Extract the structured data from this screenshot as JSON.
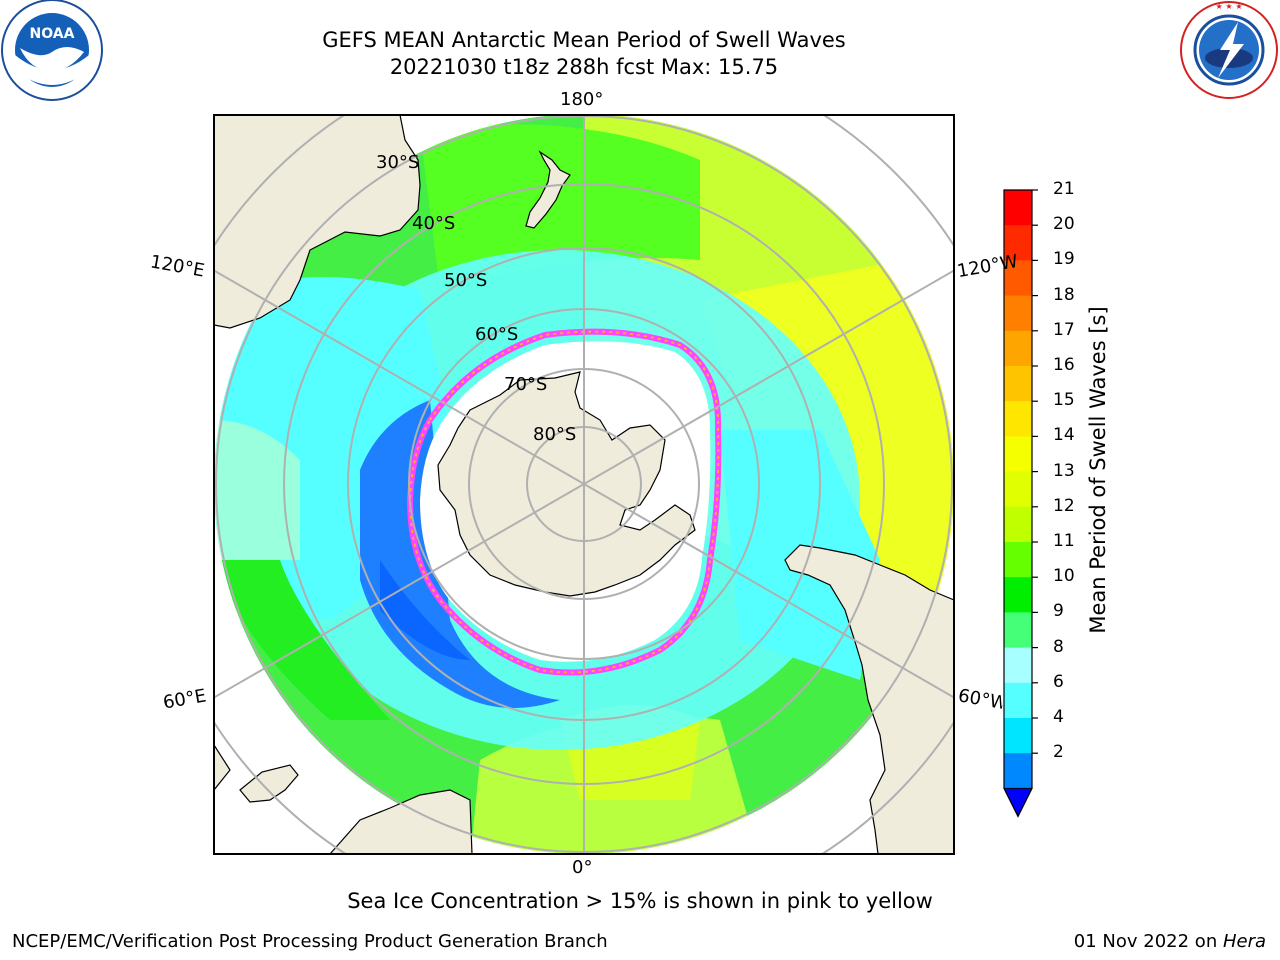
{
  "header": {
    "title_line1": "GEFS MEAN Antarctic Mean Period of Swell Waves",
    "title_line2": "20221030 t18z 288h fcst   Max: 15.75"
  },
  "logos": {
    "left": {
      "text": "NOAA",
      "ring_text": "NATIONAL OCEANIC AND ATMOSPHERIC ADMINISTRATION · U.S. DEPARTMENT OF COMMERCE"
    },
    "right": {
      "ring_text": "NATIONAL WEATHER SERVICE"
    }
  },
  "map": {
    "longitude_labels": {
      "top": "180°",
      "bottom": "0°",
      "upper_left": "120°E",
      "lower_left": "60°E",
      "upper_right": "120°W",
      "lower_right": "60°W"
    },
    "latitude_labels": [
      "30°S",
      "40°S",
      "50°S",
      "60°S",
      "70°S",
      "80°S"
    ],
    "colors": {
      "land": "#efecdc",
      "ice_edge": "#ff44ff",
      "grid": "#b0b0b0"
    }
  },
  "colorbar": {
    "title": "Mean Period of Swell Waves [s]",
    "ticks": [
      "21",
      "20",
      "19",
      "18",
      "17",
      "16",
      "15",
      "14",
      "13",
      "12",
      "11",
      "10",
      "9",
      "8",
      "6",
      "4",
      "2"
    ],
    "colors_top_to_bottom": [
      "#ff0000",
      "#ff2a00",
      "#ff5a00",
      "#ff7f00",
      "#ffa500",
      "#ffc400",
      "#ffe600",
      "#f5ff00",
      "#e0ff00",
      "#bfff00",
      "#66ff00",
      "#00ee00",
      "#44ff77",
      "#a8ffff",
      "#55ffff",
      "#00e5ff",
      "#0088ff"
    ],
    "under_color": "#0000ff"
  },
  "caption": "Sea Ice Concentration > 15% is shown in pink to yellow",
  "footer": {
    "credit": "NCEP/EMC/Verification Post Processing Product Generation Branch",
    "date": "01 Nov 2022 on ",
    "machine": "Hera"
  }
}
